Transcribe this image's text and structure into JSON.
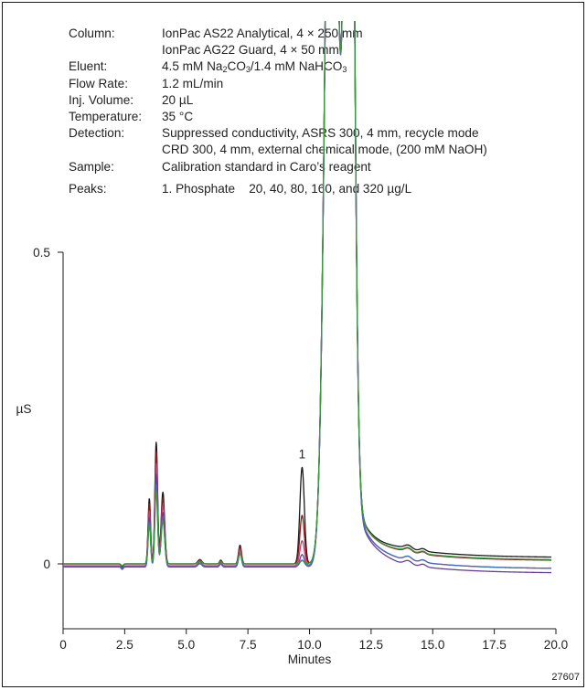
{
  "info": {
    "column_label": "Column:",
    "column_line1": "IonPac AS22 Analytical, 4 × 250 mm",
    "column_line2": "IonPac AG22 Guard, 4 × 50 mm",
    "eluent_label": "Eluent:",
    "eluent_p1": "4.5 mM Na",
    "eluent_s1": "2",
    "eluent_p2": "CO",
    "eluent_s2": "3",
    "eluent_p3": "/1.4 mM NaHCO",
    "eluent_s3": "3",
    "flow_label": "Flow Rate:",
    "flow_value": "1.2 mL/min",
    "inj_label": "Inj. Volume:",
    "inj_value": "20 µL",
    "temp_label": "Temperature:",
    "temp_value": "35 °C",
    "detection_label": "Detection:",
    "detection_line1": "Suppressed conductivity, ASRS 300, 4 mm, recycle mode",
    "detection_line2": "CRD 300, 4 mm, external chemical mode, (200 mM NaOH)",
    "sample_label": "Sample:",
    "sample_value": "Calibration standard in Caro’s reagent",
    "peaks_label": "Peaks:",
    "peaks_value": "1. Phosphate    20, 40, 80, 160, and 320 µg/L"
  },
  "figure_number": "27607",
  "chart_data": {
    "type": "line",
    "xlabel": "Minutes",
    "ylabel": "µS",
    "xlim": [
      0,
      20
    ],
    "ylim": [
      -0.15,
      0.5
    ],
    "x_ticks": [
      "0",
      "2.5",
      "5.0",
      "7.5",
      "10.0",
      "12.5",
      "15.0",
      "17.5",
      "20.0"
    ],
    "y_ticks": [
      "0.5",
      "0"
    ],
    "peak_annotation": {
      "label": "1",
      "x": 9.7,
      "y": 0.155
    },
    "shared_peaks": [
      {
        "t": 2.4,
        "h": -0.005,
        "w": 0.04
      },
      {
        "t": 3.5,
        "h": 0.105,
        "w": 0.05
      },
      {
        "t": 3.78,
        "h": 0.195,
        "w": 0.055
      },
      {
        "t": 4.05,
        "h": 0.115,
        "w": 0.07
      },
      {
        "t": 5.55,
        "h": 0.007,
        "w": 0.08
      },
      {
        "t": 6.4,
        "h": 0.006,
        "w": 0.05
      },
      {
        "t": 7.18,
        "h": 0.03,
        "w": 0.06
      },
      {
        "t": 10.9,
        "h": 1.6,
        "w": 0.24
      },
      {
        "t": 11.6,
        "h": 1.8,
        "w": 0.18
      }
    ],
    "series": [
      {
        "color": "#1a1a1a",
        "phosphate_height": 0.155,
        "baseline_offset": 0.0,
        "tail_level": 0.01
      },
      {
        "color": "#8b1a1a",
        "phosphate_height": 0.078,
        "baseline_offset": 0.0,
        "tail_level": 0.005
      },
      {
        "color": "#c0407a",
        "phosphate_height": 0.04,
        "baseline_offset": -0.003,
        "tail_level": -0.005
      },
      {
        "color": "#6a3d9a",
        "phosphate_height": 0.02,
        "baseline_offset": -0.005,
        "tail_level": -0.01
      },
      {
        "color": "#3a6fc0",
        "phosphate_height": 0.01,
        "baseline_offset": -0.004,
        "tail_level": -0.004
      },
      {
        "color": "#3a9a3a",
        "phosphate_height": 0.005,
        "baseline_offset": 0.0,
        "tail_level": 0.006
      }
    ]
  }
}
